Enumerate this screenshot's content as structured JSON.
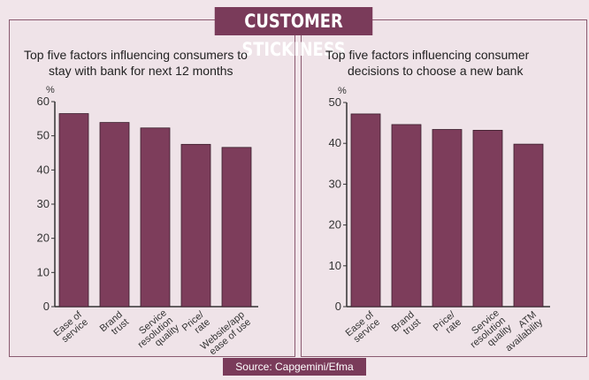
{
  "title": "CUSTOMER STICKINESS",
  "source": "Source: Capgemini/Efma",
  "chart_data": [
    {
      "type": "bar",
      "title": "Top five factors influencing consumers to stay with bank for next 12 months",
      "title_lines": [
        "Top five factors influencing consumers to",
        "stay with bank for next 12 months"
      ],
      "ylabel": "%",
      "ylim": [
        0,
        60
      ],
      "yticks": [
        0,
        10,
        20,
        30,
        40,
        50,
        60
      ],
      "categories": [
        [
          "Ease of",
          "service"
        ],
        [
          "Brand",
          "trust"
        ],
        [
          "Service",
          "resolution",
          "quality"
        ],
        [
          "Price/",
          "rate"
        ],
        [
          "Website/app",
          "ease of use"
        ]
      ],
      "values": [
        56.5,
        53.9,
        52.3,
        47.5,
        46.6
      ],
      "color": "#7d3d5b"
    },
    {
      "type": "bar",
      "title": "Top five factors influencing consumer decisions to choose a new bank",
      "title_lines": [
        "Top five factors influencing consumer",
        "decisions to choose a new bank"
      ],
      "ylabel": "%",
      "ylim": [
        0,
        50
      ],
      "yticks": [
        0,
        10,
        20,
        30,
        40,
        50
      ],
      "categories": [
        [
          "Ease of",
          "service"
        ],
        [
          "Brand",
          "trust"
        ],
        [
          "Price/",
          "rate"
        ],
        [
          "Service",
          "resolution",
          "quality"
        ],
        [
          "ATM",
          "availability"
        ]
      ],
      "values": [
        47.2,
        44.6,
        43.4,
        43.2,
        39.8
      ],
      "color": "#7d3d5b"
    }
  ]
}
